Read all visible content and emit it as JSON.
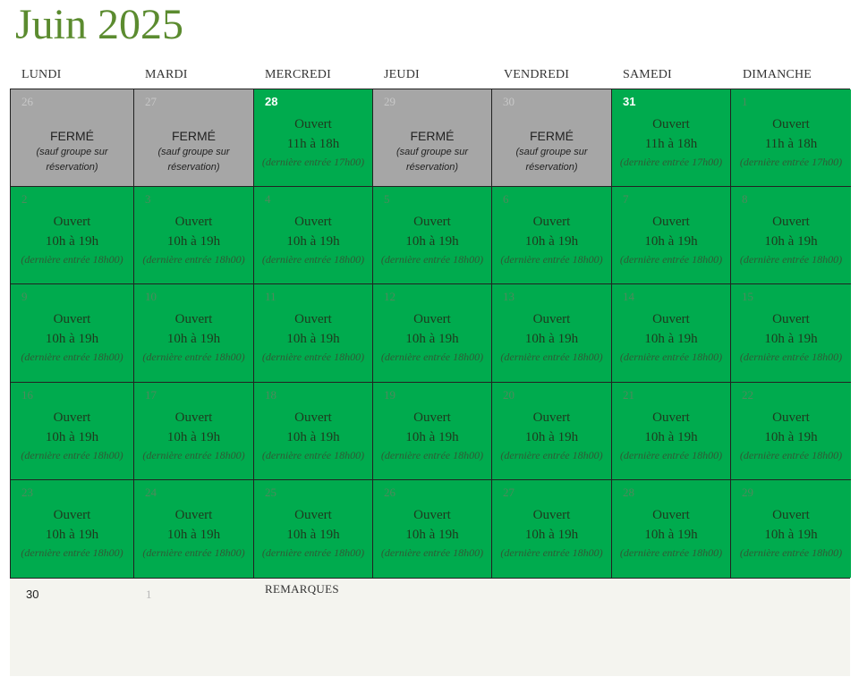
{
  "title": "Juin 2025",
  "weekdays": [
    "LUNDI",
    "MARDI",
    "MERCREDI",
    "JEUDI",
    "VENDREDI",
    "SAMEDI",
    "DIMANCHE"
  ],
  "colors": {
    "open": "#00ab4e",
    "closed": "#a6a6a6",
    "title": "#5b8b2f",
    "footer": "#f4f4ef"
  },
  "weeks": [
    [
      {
        "day": "26",
        "state": "closed",
        "status": "FERMÉ",
        "hours": "",
        "note": "(sauf groupe sur réservation)"
      },
      {
        "day": "27",
        "state": "closed",
        "status": "FERMÉ",
        "hours": "",
        "note": "(sauf groupe sur réservation)"
      },
      {
        "day": "28",
        "state": "open",
        "emph": true,
        "status": "Ouvert",
        "hours": "11h à 18h",
        "note": "(dernière entrée 17h00)"
      },
      {
        "day": "29",
        "state": "closed",
        "status": "FERMÉ",
        "hours": "",
        "note": "(sauf groupe sur réservation)"
      },
      {
        "day": "30",
        "state": "closed",
        "status": "FERMÉ",
        "hours": "",
        "note": "(sauf groupe sur réservation)"
      },
      {
        "day": "31",
        "state": "open",
        "emph": true,
        "status": "Ouvert",
        "hours": "11h à 18h",
        "note": "(dernière entrée 17h00)"
      },
      {
        "day": "1",
        "state": "open",
        "status": "Ouvert",
        "hours": "11h à 18h",
        "note": "(dernière entrée 17h00)"
      }
    ],
    [
      {
        "day": "2",
        "state": "open",
        "status": "Ouvert",
        "hours": "10h à 19h",
        "note": "(dernière entrée 18h00)"
      },
      {
        "day": "3",
        "state": "open",
        "status": "Ouvert",
        "hours": "10h à 19h",
        "note": "(dernière entrée 18h00)"
      },
      {
        "day": "4",
        "state": "open",
        "status": "Ouvert",
        "hours": "10h à 19h",
        "note": "(dernière entrée 18h00)"
      },
      {
        "day": "5",
        "state": "open",
        "status": "Ouvert",
        "hours": "10h à 19h",
        "note": "(dernière entrée 18h00)"
      },
      {
        "day": "6",
        "state": "open",
        "status": "Ouvert",
        "hours": "10h à 19h",
        "note": "(dernière entrée 18h00)"
      },
      {
        "day": "7",
        "state": "open",
        "status": "Ouvert",
        "hours": "10h à 19h",
        "note": "(dernière entrée 18h00)"
      },
      {
        "day": "8",
        "state": "open",
        "status": "Ouvert",
        "hours": "10h à 19h",
        "note": "(dernière entrée 18h00)"
      }
    ],
    [
      {
        "day": "9",
        "state": "open",
        "status": "Ouvert",
        "hours": "10h à 19h",
        "note": "(dernière entrée 18h00)"
      },
      {
        "day": "10",
        "state": "open",
        "status": "Ouvert",
        "hours": "10h à 19h",
        "note": "(dernière entrée 18h00)"
      },
      {
        "day": "11",
        "state": "open",
        "status": "Ouvert",
        "hours": "10h à 19h",
        "note": "(dernière entrée 18h00)"
      },
      {
        "day": "12",
        "state": "open",
        "status": "Ouvert",
        "hours": "10h à 19h",
        "note": "(dernière entrée 18h00)"
      },
      {
        "day": "13",
        "state": "open",
        "status": "Ouvert",
        "hours": "10h à 19h",
        "note": "(dernière entrée 18h00)"
      },
      {
        "day": "14",
        "state": "open",
        "status": "Ouvert",
        "hours": "10h à 19h",
        "note": "(dernière entrée 18h00)"
      },
      {
        "day": "15",
        "state": "open",
        "status": "Ouvert",
        "hours": "10h à 19h",
        "note": "(dernière entrée 18h00)"
      }
    ],
    [
      {
        "day": "16",
        "state": "open",
        "status": "Ouvert",
        "hours": "10h à 19h",
        "note": "(dernière entrée 18h00)"
      },
      {
        "day": "17",
        "state": "open",
        "status": "Ouvert",
        "hours": "10h à 19h",
        "note": "(dernière entrée 18h00)"
      },
      {
        "day": "18",
        "state": "open",
        "status": "Ouvert",
        "hours": "10h à 19h",
        "note": "(dernière entrée 18h00)"
      },
      {
        "day": "19",
        "state": "open",
        "status": "Ouvert",
        "hours": "10h à 19h",
        "note": "(dernière entrée 18h00)"
      },
      {
        "day": "20",
        "state": "open",
        "status": "Ouvert",
        "hours": "10h à 19h",
        "note": "(dernière entrée 18h00)"
      },
      {
        "day": "21",
        "state": "open",
        "status": "Ouvert",
        "hours": "10h à 19h",
        "note": "(dernière entrée 18h00)"
      },
      {
        "day": "22",
        "state": "open",
        "status": "Ouvert",
        "hours": "10h à 19h",
        "note": "(dernière entrée 18h00)"
      }
    ],
    [
      {
        "day": "23",
        "state": "open",
        "status": "Ouvert",
        "hours": "10h à 19h",
        "note": "(dernière entrée 18h00)"
      },
      {
        "day": "24",
        "state": "open",
        "status": "Ouvert",
        "hours": "10h à 19h",
        "note": "(dernière entrée 18h00)"
      },
      {
        "day": "25",
        "state": "open",
        "status": "Ouvert",
        "hours": "10h à 19h",
        "note": "(dernière entrée 18h00)"
      },
      {
        "day": "26",
        "state": "open",
        "status": "Ouvert",
        "hours": "10h à 19h",
        "note": "(dernière entrée 18h00)"
      },
      {
        "day": "27",
        "state": "open",
        "status": "Ouvert",
        "hours": "10h à 19h",
        "note": "(dernière entrée 18h00)"
      },
      {
        "day": "28",
        "state": "open",
        "status": "Ouvert",
        "hours": "10h à 19h",
        "note": "(dernière entrée 18h00)"
      },
      {
        "day": "29",
        "state": "open",
        "status": "Ouvert",
        "hours": "10h à 19h",
        "note": "(dernière entrée 18h00)"
      }
    ]
  ],
  "footer": {
    "day30": "30",
    "next1": "1",
    "remarks_label": "REMARQUES"
  }
}
